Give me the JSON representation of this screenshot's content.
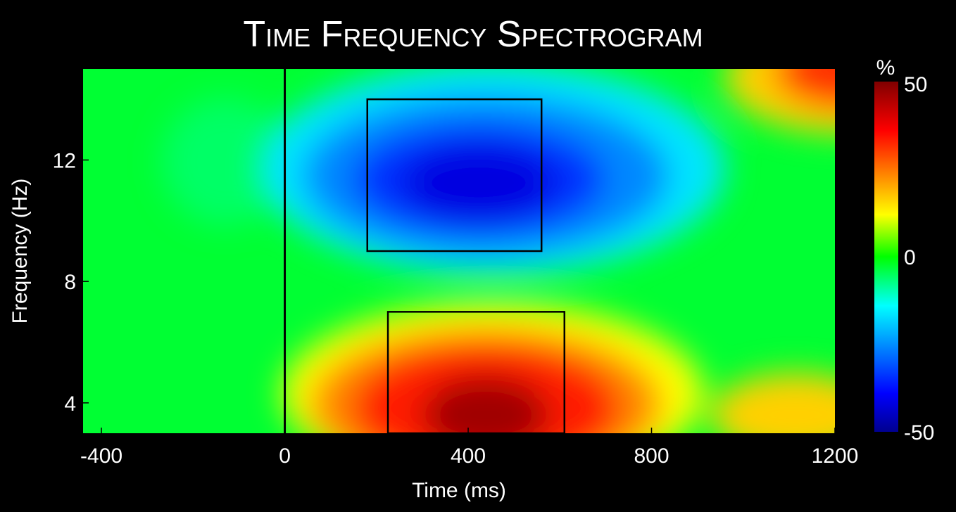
{
  "chart_data": {
    "type": "heatmap",
    "title": "Time Frequency Spectrogram",
    "xlabel": "Time (ms)",
    "ylabel": "Frequency (Hz)",
    "xlim": [
      -440,
      1200
    ],
    "ylim": [
      3,
      15
    ],
    "x_ticks": [
      -400,
      0,
      400,
      800,
      1200
    ],
    "y_ticks": [
      4,
      8,
      12
    ],
    "colorbar": {
      "label": "%",
      "range": [
        -50,
        50
      ],
      "ticks": [
        50,
        0,
        -50
      ],
      "colormap": "jet"
    },
    "stimulus_onset_ms": 0,
    "analysis_windows": [
      {
        "x": [
          180,
          560
        ],
        "y": [
          9.0,
          14.0
        ]
      },
      {
        "x": [
          225,
          610
        ],
        "y": [
          3.0,
          7.0
        ]
      }
    ],
    "grid": false,
    "annotations": [
      {
        "text": "-400"
      },
      {
        "text": "0"
      },
      {
        "text": "400"
      },
      {
        "text": "800"
      },
      {
        "text": "1200"
      }
    ]
  },
  "colors": {
    "background": "#000000",
    "outline": "#000000",
    "text": "#ffffff"
  }
}
